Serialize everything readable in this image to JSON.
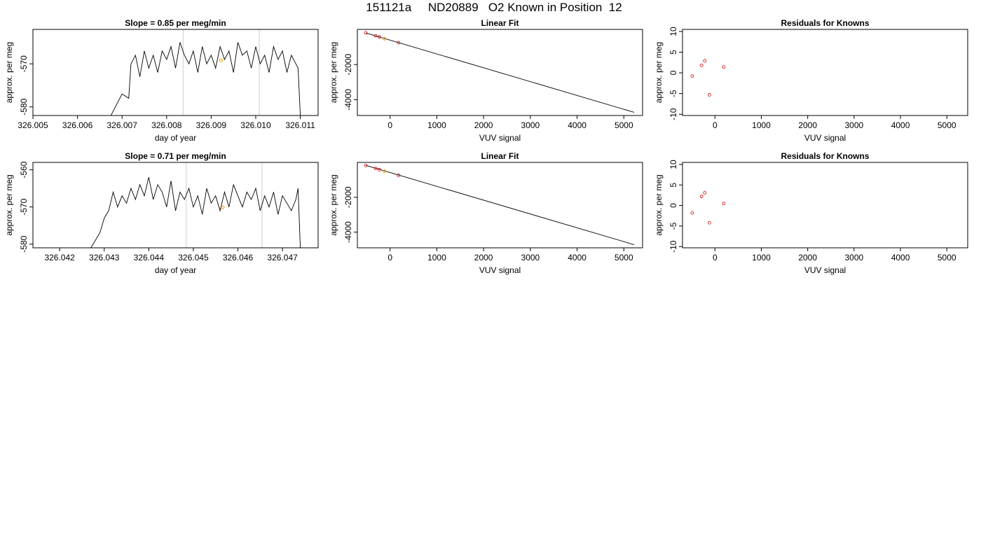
{
  "title": "151121a     ND20889   O2 Known in Position  12",
  "chart_data": [
    {
      "type": "line",
      "title": "Slope =  0.85  per meg/min",
      "xlabel": "day of year",
      "ylabel": "approx. per meg",
      "xlim": [
        326.005,
        326.0114
      ],
      "ylim": [
        -582,
        -562
      ],
      "xticks": [
        "326.005",
        "326.006",
        "326.007",
        "326.008",
        "326.009",
        "326.010",
        "326.011"
      ],
      "xtick_values": [
        326.005,
        326.006,
        326.007,
        326.008,
        326.009,
        326.01,
        326.011
      ],
      "yticks": [
        "-580",
        "-570"
      ],
      "ytick_values": [
        -580,
        -570
      ],
      "vlines": [
        326.00837,
        326.01008
      ],
      "vline_color": "#cccccc",
      "highlight_point": {
        "x": 326.00922,
        "y": -569.2,
        "color": "#ffa500"
      },
      "series": [
        {
          "x": [
            326.00675,
            326.0069,
            326.007,
            326.00715,
            326.0072,
            326.0073,
            326.0074,
            326.0075,
            326.0076,
            326.0077,
            326.0078,
            326.0079,
            326.008,
            326.0081,
            326.0082,
            326.0083,
            326.0084,
            326.0085,
            326.0086,
            326.0087,
            326.0088,
            326.0089,
            326.009,
            326.0091,
            326.0092,
            326.0093,
            326.0094,
            326.0095,
            326.0096,
            326.0097,
            326.0098,
            326.0099,
            326.01,
            326.0101,
            326.0102,
            326.0103,
            326.0104,
            326.0105,
            326.0106,
            326.0107,
            326.0108,
            326.0109,
            326.01095,
            326.011
          ],
          "y": [
            -582,
            -579,
            -577,
            -578,
            -570,
            -568,
            -573,
            -567,
            -571,
            -568,
            -572,
            -567,
            -569,
            -566,
            -571,
            -565,
            -568,
            -570,
            -567,
            -572,
            -566,
            -570,
            -568,
            -571,
            -566,
            -569,
            -567,
            -572,
            -565,
            -568,
            -567,
            -571,
            -566,
            -570,
            -568,
            -572,
            -566,
            -569,
            -567,
            -572,
            -568,
            -570,
            -571,
            -582
          ],
          "color": "#000000"
        }
      ]
    },
    {
      "type": "scatter",
      "title": "Linear Fit",
      "xlabel": "VUV signal",
      "ylabel": "approx. per meg",
      "xlim": [
        -700,
        5400
      ],
      "ylim": [
        -4900,
        0
      ],
      "xticks": [
        "0",
        "1000",
        "2000",
        "3000",
        "4000",
        "5000"
      ],
      "xtick_values": [
        0,
        1000,
        2000,
        3000,
        4000,
        5000
      ],
      "yticks": [
        "-2000",
        "-4000"
      ],
      "ytick_values": [
        -2000,
        -4000
      ],
      "fit_line": {
        "x": [
          -520,
          5220
        ],
        "y": [
          -200,
          -4720
        ]
      },
      "points": {
        "x": [
          -520,
          -310,
          -230,
          180
        ],
        "y": [
          -190,
          -360,
          -430,
          -760
        ],
        "color": "#d00000"
      },
      "highlight_point": {
        "x": -120,
        "y": -530,
        "color": "#ffa500"
      }
    },
    {
      "type": "scatter",
      "title": "Residuals for Knowns",
      "xlabel": "VUV signal",
      "ylabel": "approx. per meg",
      "xlim": [
        -700,
        5450
      ],
      "ylim": [
        -10.3,
        10.5
      ],
      "xticks": [
        "0",
        "1000",
        "2000",
        "3000",
        "4000",
        "5000"
      ],
      "xtick_values": [
        0,
        1000,
        2000,
        3000,
        4000,
        5000
      ],
      "yticks": [
        "-10",
        "-5",
        "0",
        "5",
        "10"
      ],
      "ytick_values": [
        -10,
        -5,
        0,
        5,
        10
      ],
      "points": {
        "x": [
          -490,
          -290,
          -220,
          -120,
          190
        ],
        "y": [
          -0.8,
          1.8,
          2.9,
          -5.3,
          1.4
        ],
        "color": "#d00000"
      }
    },
    {
      "type": "line",
      "title": "Slope =  0.71  per meg/min",
      "xlabel": "day of year",
      "ylabel": "approx. per meg",
      "xlim": [
        326.0414,
        326.0478
      ],
      "ylim": [
        -581,
        -558
      ],
      "xticks": [
        "326.042",
        "326.043",
        "326.044",
        "326.045",
        "326.046",
        "326.047"
      ],
      "xtick_values": [
        326.042,
        326.043,
        326.044,
        326.045,
        326.046,
        326.047
      ],
      "yticks": [
        "-580",
        "-570",
        "-560"
      ],
      "ytick_values": [
        -580,
        -570,
        -560
      ],
      "vlines": [
        326.04484,
        326.04654
      ],
      "vline_color": "#cccccc",
      "highlight_point": {
        "x": 326.04566,
        "y": -570.1,
        "color": "#ffa500"
      },
      "series": [
        {
          "x": [
            326.0427,
            326.0429,
            326.043,
            326.0431,
            326.0432,
            326.0433,
            326.0434,
            326.0435,
            326.0436,
            326.0437,
            326.0438,
            326.0439,
            326.044,
            326.0441,
            326.0442,
            326.0443,
            326.0444,
            326.0445,
            326.0446,
            326.0447,
            326.0448,
            326.0449,
            326.045,
            326.0451,
            326.0452,
            326.0453,
            326.0454,
            326.0455,
            326.0456,
            326.0457,
            326.0458,
            326.0459,
            326.046,
            326.0461,
            326.0462,
            326.0463,
            326.0464,
            326.0465,
            326.0466,
            326.0467,
            326.0468,
            326.0469,
            326.047,
            326.0471,
            326.0472,
            326.0473,
            326.04735,
            326.0474
          ],
          "y": [
            -581,
            -577,
            -573,
            -571,
            -566,
            -570,
            -567,
            -569,
            -565,
            -568,
            -564,
            -567,
            -562,
            -568,
            -564,
            -566,
            -570,
            -563,
            -571,
            -566,
            -568,
            -565,
            -570,
            -567,
            -572,
            -565,
            -569,
            -567,
            -571,
            -566,
            -570,
            -564,
            -567,
            -570,
            -566,
            -568,
            -565,
            -571,
            -567,
            -570,
            -566,
            -572,
            -567,
            -569,
            -571,
            -568,
            -565,
            -581
          ],
          "color": "#000000"
        }
      ]
    },
    {
      "type": "scatter",
      "title": "Linear Fit",
      "xlabel": "VUV signal",
      "ylabel": "approx. per meg",
      "xlim": [
        -700,
        5400
      ],
      "ylim": [
        -4900,
        0
      ],
      "xticks": [
        "0",
        "1000",
        "2000",
        "3000",
        "4000",
        "5000"
      ],
      "xtick_values": [
        0,
        1000,
        2000,
        3000,
        4000,
        5000
      ],
      "yticks": [
        "-2000",
        "-4000"
      ],
      "ytick_values": [
        -2000,
        -4000
      ],
      "fit_line": {
        "x": [
          -520,
          5220
        ],
        "y": [
          -170,
          -4720
        ]
      },
      "points": {
        "x": [
          -520,
          -310,
          -230,
          180
        ],
        "y": [
          -180,
          -350,
          -420,
          -740
        ],
        "color": "#d00000"
      },
      "highlight_point": {
        "x": -120,
        "y": -510,
        "color": "#ffa500"
      }
    },
    {
      "type": "scatter",
      "title": "Residuals for Knowns",
      "xlabel": "VUV signal",
      "ylabel": "approx. per meg",
      "xlim": [
        -700,
        5450
      ],
      "ylim": [
        -10.3,
        10.5
      ],
      "xticks": [
        "0",
        "1000",
        "2000",
        "3000",
        "4000",
        "5000"
      ],
      "xtick_values": [
        0,
        1000,
        2000,
        3000,
        4000,
        5000
      ],
      "yticks": [
        "-10",
        "-5",
        "0",
        "5",
        "10"
      ],
      "ytick_values": [
        -10,
        -5,
        0,
        5,
        10
      ],
      "points": {
        "x": [
          -490,
          -290,
          -220,
          -120,
          190
        ],
        "y": [
          -1.8,
          2.2,
          3.1,
          -4.2,
          0.5
        ],
        "color": "#d00000"
      }
    }
  ]
}
